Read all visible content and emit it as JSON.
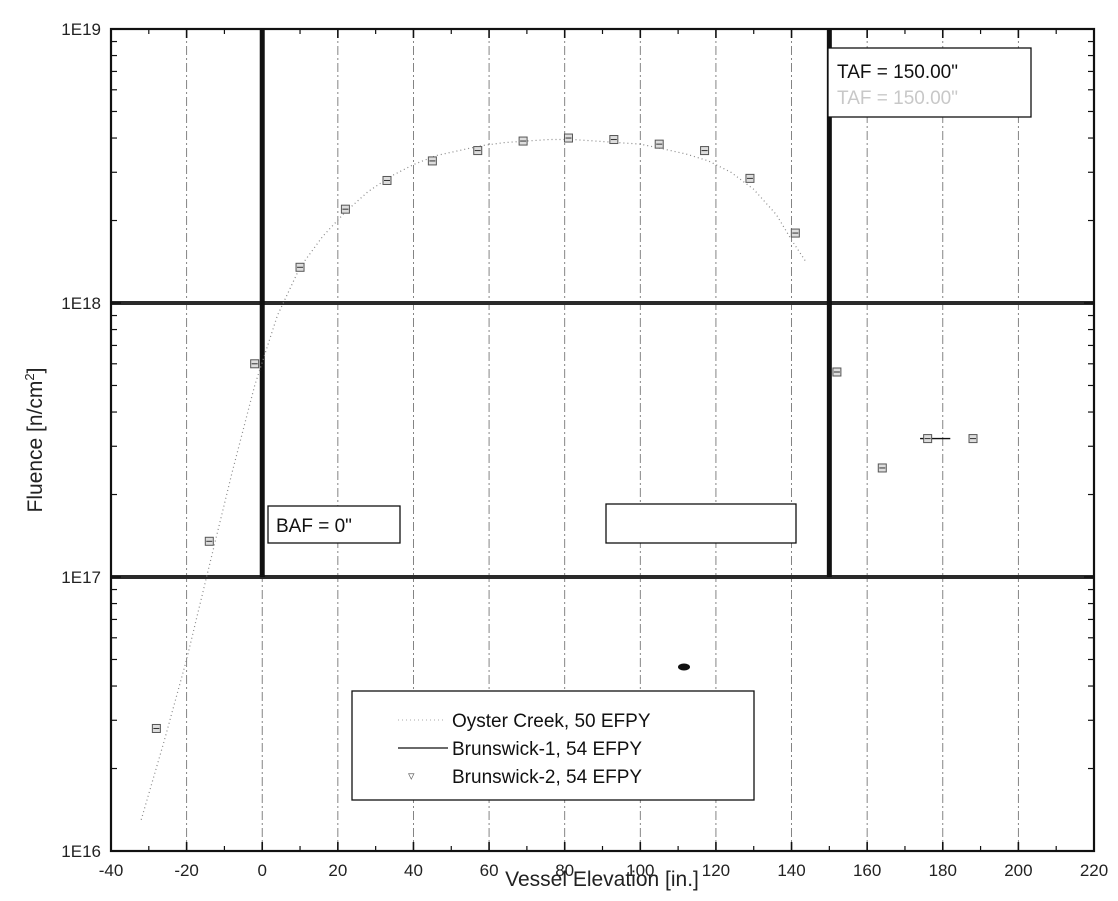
{
  "chart_data": {
    "type": "line",
    "xlabel": "Vessel Elevation [in.]",
    "ylabel": "Fluence [n/cm",
    "ylabel_sup": "2",
    "ylabel_end": "]",
    "xlim": [
      -40,
      220
    ],
    "ylim": [
      1e+16,
      1e+19
    ],
    "y_scale": "log",
    "grid": true,
    "x_ticks": [
      -40,
      -20,
      0,
      20,
      40,
      60,
      80,
      100,
      120,
      140,
      160,
      180,
      200,
      220
    ],
    "x_tick_labels": [
      "-40",
      "-20",
      "0",
      "20",
      "40",
      "60",
      "80",
      "100",
      "120",
      "140",
      "160",
      "180",
      "200",
      "220"
    ],
    "y_ticks": [
      1e+16,
      1e+17,
      1e+18,
      1e+19
    ],
    "y_tick_labels": [
      "1E16",
      "1E17",
      "1E18",
      "1E19"
    ],
    "reference_lines": {
      "vertical": [
        0,
        150
      ],
      "horizontal": [
        1e+17,
        1e+18
      ]
    },
    "annotations": {
      "baf": "BAF = 0\"",
      "taf": "TAF = 150.00\"",
      "taf_faded": "TAF = 150.00\""
    },
    "legend_position": "bottom-center",
    "series": [
      {
        "name": "Oyster Creek, 50 EFPY",
        "style": "dotted",
        "x": [
          -32,
          -26,
          -20,
          -14,
          -8,
          -2,
          4,
          10,
          16,
          22,
          28,
          34,
          40,
          46,
          52,
          58,
          64,
          70,
          76,
          82,
          88,
          94,
          100,
          106,
          112,
          118,
          124,
          130,
          136,
          140,
          144
        ],
        "values": [
          1.3e+16,
          2.5e+16,
          5e+16,
          1.1e+17,
          2.4e+17,
          5e+17,
          9e+17,
          1.35e+18,
          1.75e+18,
          2.15e+18,
          2.55e+18,
          2.9e+18,
          3.2e+18,
          3.45e+18,
          3.6e+18,
          3.75e+18,
          3.85e+18,
          3.9e+18,
          3.95e+18,
          3.95e+18,
          3.9e+18,
          3.85e+18,
          3.8e+18,
          3.65e+18,
          3.5e+18,
          3.3e+18,
          3e+18,
          2.6e+18,
          2.1e+18,
          1.7e+18,
          1.4e+18
        ]
      },
      {
        "name": "Brunswick-1, 54 EFPY",
        "style": "solid",
        "x": [
          174,
          182
        ],
        "values": [
          3.2e+17,
          3.2e+17
        ]
      },
      {
        "name": "Brunswick-2, 54 EFPY",
        "style": "markers",
        "x": [
          -28,
          -14,
          -2,
          10,
          22,
          33,
          45,
          57,
          69,
          81,
          93,
          105,
          117,
          129,
          141,
          152,
          164,
          176,
          188
        ],
        "values": [
          2.8e+16,
          1.35e+17,
          6e+17,
          1.35e+18,
          2.2e+18,
          2.8e+18,
          3.3e+18,
          3.6e+18,
          3.9e+18,
          4e+18,
          3.95e+18,
          3.8e+18,
          3.6e+18,
          2.85e+18,
          1.8e+18,
          5.6e+17,
          2.5e+17,
          3.2e+17,
          3.2e+17
        ]
      }
    ]
  }
}
